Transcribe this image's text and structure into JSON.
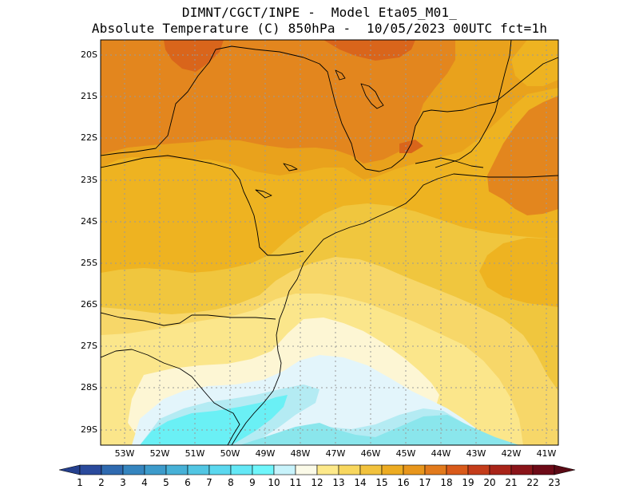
{
  "header": {
    "title_line1": "DIMNT/CGCT/INPE -  Model Eta05_M01_",
    "title_line2": "Absolute Temperature (C) 850hPa -  10/05/2023 00UTC fct=1h"
  },
  "map": {
    "lat_labels": [
      "20S",
      "21S",
      "22S",
      "23S",
      "24S",
      "25S",
      "26S",
      "27S",
      "28S",
      "29S"
    ],
    "lon_labels": [
      "53W",
      "52W",
      "51W",
      "50W",
      "49W",
      "48W",
      "47W",
      "46W",
      "45W",
      "44W",
      "43W",
      "42W",
      "41W"
    ],
    "colors": {
      "c14": "#f7d769",
      "c15": "#f0c63e",
      "c16": "#eeb321",
      "c17": "#e9a21c",
      "c18": "#e3861e",
      "c19": "#d9651b",
      "c13": "#fbe68b",
      "c12": "#fdf6d4",
      "c11": "#e3f5fb",
      "c10": "#b4ebf3",
      "c9": "#6af0f5",
      "c9b": "#8ae6ec"
    }
  },
  "colorbar": {
    "labels": [
      "1",
      "2",
      "3",
      "4",
      "5",
      "6",
      "7",
      "8",
      "9",
      "10",
      "11",
      "12",
      "13",
      "14",
      "15",
      "16",
      "17",
      "18",
      "19",
      "20",
      "21",
      "22",
      "23"
    ],
    "colors": [
      "#2a4a9c",
      "#2f6ab0",
      "#3585bf",
      "#3d9bcb",
      "#47b1d7",
      "#52c6e3",
      "#5bd8ef",
      "#64e8f6",
      "#6ff6fb",
      "#c8f3fb",
      "#fbfae8",
      "#fde98a",
      "#f8d75e",
      "#f2c23d",
      "#edac22",
      "#e8961c",
      "#e27a1c",
      "#d95a1a",
      "#c43c1a",
      "#a92419",
      "#8a1419",
      "#6d0a17"
    ],
    "left_end_color": "#25408e",
    "right_end_color": "#5a0a15"
  }
}
